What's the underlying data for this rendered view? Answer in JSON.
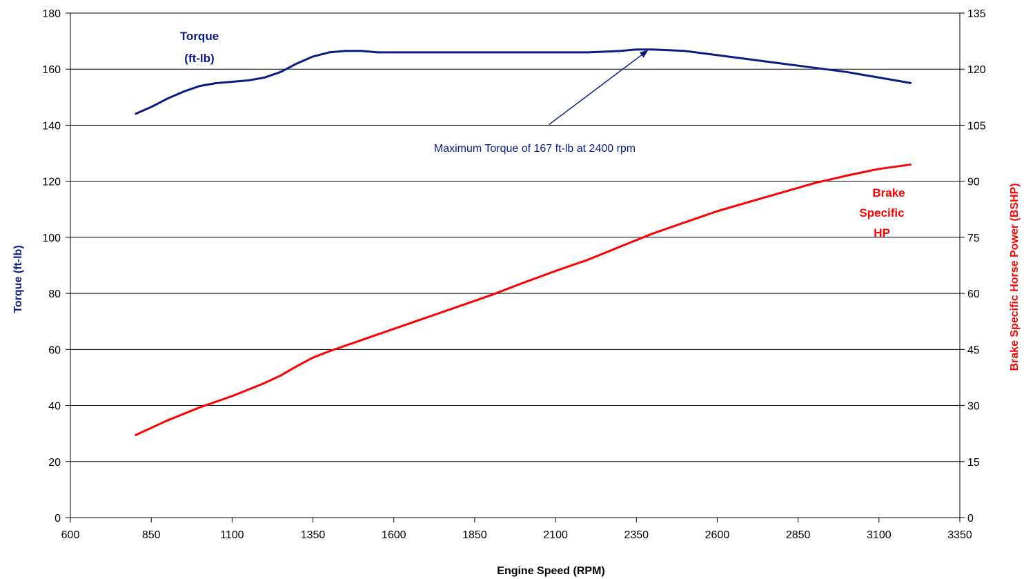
{
  "chart_data": {
    "type": "line",
    "xlabel": "Engine Speed (RPM)",
    "ylabel_left": "Torque (ft-lb)",
    "ylabel_right": "Brake Specific Horse Power (BSHP)",
    "xlim": [
      600,
      3350
    ],
    "xticks": [
      600,
      850,
      1100,
      1350,
      1600,
      1850,
      2100,
      2350,
      2600,
      2850,
      3100,
      3350
    ],
    "ylim_left": [
      0,
      180
    ],
    "yticks_left": [
      0,
      20,
      40,
      60,
      80,
      100,
      120,
      140,
      160,
      180
    ],
    "ylim_right": [
      0,
      135
    ],
    "yticks_right": [
      0,
      15,
      30,
      45,
      60,
      75,
      90,
      105,
      120,
      135
    ],
    "grid": "horizontal",
    "series": [
      {
        "name_lines": [
          "Torque",
          "(ft-lb)"
        ],
        "axis": "left",
        "color": "#0b1b84",
        "x": [
          800,
          850,
          900,
          950,
          1000,
          1050,
          1100,
          1150,
          1200,
          1250,
          1300,
          1350,
          1400,
          1450,
          1500,
          1550,
          1600,
          1700,
          1800,
          1900,
          2000,
          2100,
          2200,
          2300,
          2350,
          2400,
          2500,
          2600,
          2700,
          2800,
          2900,
          3000,
          3100,
          3200
        ],
        "values": [
          144,
          146.5,
          149.5,
          152,
          154,
          155,
          155.5,
          156,
          157,
          159,
          162,
          164.5,
          166,
          166.5,
          166.5,
          166,
          166,
          166,
          166,
          166,
          166,
          166,
          166,
          166.5,
          167,
          167,
          166.5,
          165,
          163.5,
          162,
          160.5,
          159,
          157,
          155
        ]
      },
      {
        "name_lines": [
          "Brake",
          "Specific",
          "HP"
        ],
        "axis": "right",
        "color": "#ff0000",
        "x": [
          800,
          900,
          1000,
          1100,
          1200,
          1250,
          1300,
          1350,
          1400,
          1500,
          1600,
          1700,
          1800,
          1900,
          2000,
          2100,
          2200,
          2300,
          2400,
          2500,
          2600,
          2700,
          2800,
          2900,
          3000,
          3100,
          3200
        ],
        "values": [
          22,
          26,
          29.5,
          32.5,
          36,
          38,
          40.5,
          42.8,
          44.5,
          47.5,
          50.5,
          53.5,
          56.5,
          59.5,
          62.8,
          66,
          69,
          72.5,
          76,
          79,
          82,
          84.5,
          87,
          89.5,
          91.5,
          93.3,
          94.5
        ]
      }
    ],
    "annotation": {
      "text": "Maximum Torque of 167 ft-lb at 2400 rpm",
      "arrow_from": [
        2050,
        140
      ],
      "arrow_to": [
        2400,
        167
      ]
    }
  }
}
